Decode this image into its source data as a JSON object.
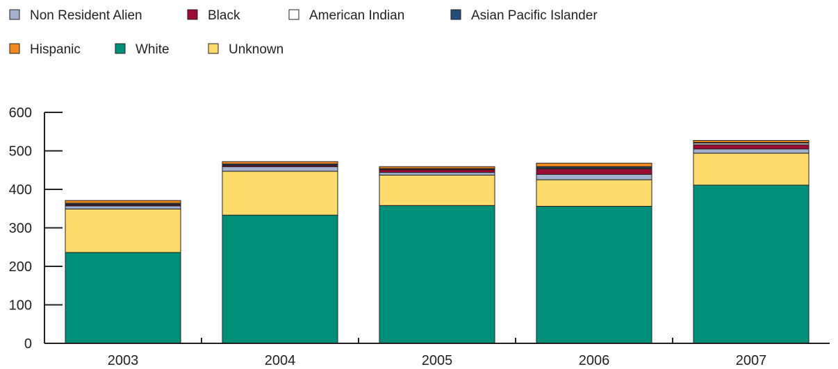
{
  "chart_data": {
    "type": "bar",
    "stacked": true,
    "categories": [
      "2003",
      "2004",
      "2005",
      "2006",
      "2007"
    ],
    "ylim": [
      0,
      600
    ],
    "yticks": [
      0,
      100,
      200,
      300,
      400,
      500,
      600
    ],
    "legend_placement": "top",
    "grid": false,
    "series": [
      {
        "name": "White",
        "color": "#00907a",
        "values": [
          236,
          333,
          358,
          356,
          411
        ]
      },
      {
        "name": "Unknown",
        "color": "#fddc6d",
        "values": [
          113,
          114,
          79,
          69,
          83
        ]
      },
      {
        "name": "Non Resident Alien",
        "color": "#a3b1cf",
        "values": [
          8,
          12,
          7,
          14,
          11
        ]
      },
      {
        "name": "Black",
        "color": "#9b0a32",
        "values": [
          3,
          3,
          7,
          14,
          11
        ]
      },
      {
        "name": "American Indian",
        "color": "#ffffff",
        "values": [
          1,
          1,
          1,
          2,
          4
        ]
      },
      {
        "name": "Asian Pacific Islander",
        "color": "#1f4e7a",
        "values": [
          3,
          3,
          2,
          4,
          2
        ]
      },
      {
        "name": "Hispanic",
        "color": "#f28a1f",
        "values": [
          7,
          6,
          5,
          9,
          5
        ]
      }
    ],
    "legend": [
      [
        "Non Resident Alien",
        "Black",
        "American Indian",
        "Asian Pacific Islander"
      ],
      [
        "Hispanic",
        "White",
        "Unknown"
      ]
    ]
  }
}
